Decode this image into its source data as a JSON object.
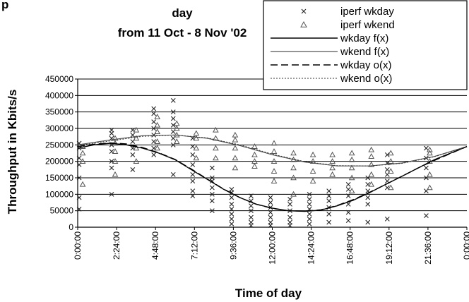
{
  "chart_data": {
    "type": "scatter",
    "title_lines": [
      "p",
      "day",
      "from 11 Oct - 8 Nov '02"
    ],
    "xlabel": "Time of day",
    "ylabel": "Throughput in Kbits/s",
    "xlim": [
      0,
      24
    ],
    "ylim": [
      0,
      450000
    ],
    "y_ticks": [
      0,
      50000,
      100000,
      150000,
      200000,
      250000,
      300000,
      350000,
      400000,
      450000
    ],
    "y_tick_labels": [
      "0",
      "50000",
      "100000",
      "150000",
      "200000",
      "250000",
      "300000",
      "350000",
      "400000",
      "450000"
    ],
    "x_tick_labels": [
      "0:00:00",
      "2:24:00",
      "4:48:00",
      "7:12:00",
      "9:36:00",
      "12:00:00",
      "14:24:00",
      "16:48:00",
      "19:12:00",
      "21:36:00",
      "0:00:00"
    ],
    "grid": "horizontal",
    "legend_position": "top-right",
    "series": [
      {
        "name": "iperf wkday",
        "marker": "x",
        "clusters": [
          {
            "x": 0.2,
            "y": [
              55000,
              90000,
              150000,
              190000,
              210000,
              240000,
              255000
            ]
          },
          {
            "x": 2.2,
            "y": [
              100000,
              180000,
              200000,
              230000,
              250000,
              270000,
              285000,
              295000
            ]
          },
          {
            "x": 3.5,
            "y": [
              175000,
              220000,
              240000,
              260000,
              280000,
              295000
            ]
          },
          {
            "x": 4.8,
            "y": [
              220000,
              240000,
              260000,
              280000,
              300000,
              320000,
              345000,
              360000
            ]
          },
          {
            "x": 6.0,
            "y": [
              160000,
              250000,
              270000,
              290000,
              310000,
              330000,
              350000,
              385000
            ]
          },
          {
            "x": 7.2,
            "y": [
              95000,
              110000,
              140000,
              160000,
              190000,
              220000,
              245000,
              270000
            ]
          },
          {
            "x": 8.4,
            "y": [
              50000,
              80000,
              100000,
              120000,
              140000,
              150000,
              180000
            ]
          },
          {
            "x": 9.6,
            "y": [
              10000,
              25000,
              40000,
              55000,
              70000,
              90000,
              105000,
              115000
            ]
          },
          {
            "x": 10.8,
            "y": [
              5000,
              15000,
              30000,
              50000,
              65000,
              80000,
              95000
            ]
          },
          {
            "x": 12.0,
            "y": [
              5000,
              15000,
              30000,
              45000,
              60000,
              75000,
              90000
            ]
          },
          {
            "x": 13.2,
            "y": [
              5000,
              15000,
              30000,
              50000,
              70000,
              85000
            ]
          },
          {
            "x": 14.4,
            "y": [
              10000,
              25000,
              40000,
              55000,
              70000,
              85000,
              100000
            ]
          },
          {
            "x": 15.6,
            "y": [
              15000,
              40000,
              60000,
              80000,
              95000,
              110000
            ]
          },
          {
            "x": 16.8,
            "y": [
              20000,
              45000,
              70000,
              95000,
              115000,
              130000
            ]
          },
          {
            "x": 18.0,
            "y": [
              15000,
              70000,
              90000,
              110000,
              130000,
              150000
            ]
          },
          {
            "x": 19.2,
            "y": [
              25000,
              120000,
              140000,
              160000,
              175000,
              195000,
              220000
            ]
          },
          {
            "x": 21.6,
            "y": [
              35000,
              110000,
              150000,
              180000,
              210000,
              240000
            ]
          }
        ]
      },
      {
        "name": "iperf wkend",
        "marker": "triangle",
        "clusters": [
          {
            "x": 0.2,
            "y": [
              130000,
              200000,
              225000,
              245000
            ]
          },
          {
            "x": 2.2,
            "y": [
              160000,
              200000,
              230000,
              255000,
              270000
            ]
          },
          {
            "x": 3.5,
            "y": [
              200000,
              240000,
              270000,
              295000
            ]
          },
          {
            "x": 4.8,
            "y": [
              240000,
              260000,
              290000,
              310000,
              335000
            ]
          },
          {
            "x": 6.0,
            "y": [
              260000,
              280000,
              300000,
              315000
            ]
          },
          {
            "x": 7.2,
            "y": [
              210000,
              240000,
              270000,
              285000
            ]
          },
          {
            "x": 8.4,
            "y": [
              210000,
              240000,
              270000,
              295000
            ]
          },
          {
            "x": 9.6,
            "y": [
              180000,
              210000,
              240000,
              265000,
              280000
            ]
          },
          {
            "x": 10.8,
            "y": [
              185000,
              200000,
              220000,
              245000
            ]
          },
          {
            "x": 12.0,
            "y": [
              140000,
              170000,
              200000,
              230000,
              255000
            ]
          },
          {
            "x": 13.2,
            "y": [
              100000,
              150000,
              180000,
              205000,
              225000
            ]
          },
          {
            "x": 14.4,
            "y": [
              140000,
              170000,
              200000,
              220000
            ]
          },
          {
            "x": 15.6,
            "y": [
              160000,
              180000,
              200000,
              220000
            ]
          },
          {
            "x": 16.8,
            "y": [
              110000,
              150000,
              180000,
              205000,
              225000
            ]
          },
          {
            "x": 18.0,
            "y": [
              130000,
              160000,
              190000,
              215000,
              235000
            ]
          },
          {
            "x": 19.2,
            "y": [
              120000,
              170000,
              200000,
              225000
            ]
          },
          {
            "x": 21.6,
            "y": [
              120000,
              160000,
              200000,
              225000,
              235000
            ]
          }
        ]
      },
      {
        "name": "wkday f(x)",
        "line_style": "solid",
        "x": [
          0,
          1,
          2,
          3,
          4,
          5,
          6,
          7,
          8,
          9,
          10,
          11,
          12,
          13,
          14,
          15,
          16,
          17,
          18,
          19,
          20,
          21,
          22,
          23,
          24
        ],
        "y": [
          240000,
          250000,
          255000,
          250000,
          240000,
          225000,
          205000,
          175000,
          145000,
          115000,
          90000,
          70000,
          58000,
          50000,
          48000,
          52000,
          65000,
          82000,
          105000,
          130000,
          155000,
          180000,
          205000,
          225000,
          245000
        ]
      },
      {
        "name": "wkend f(x)",
        "line_style": "solid-light",
        "x": [
          0,
          2,
          4,
          6,
          8,
          10,
          12,
          14,
          16,
          18,
          20,
          22,
          24
        ],
        "y": [
          250000,
          265000,
          278000,
          280000,
          270000,
          248000,
          220000,
          198000,
          186000,
          186000,
          195000,
          215000,
          245000
        ]
      },
      {
        "name": "wkday o(x)",
        "line_style": "dashed",
        "x": [
          0,
          1,
          2,
          3,
          4,
          5,
          6,
          7,
          8,
          9,
          10,
          11,
          12,
          13,
          14,
          15,
          16,
          17,
          18,
          19,
          20,
          21,
          22,
          23,
          24
        ],
        "y": [
          245000,
          252000,
          256000,
          253000,
          242000,
          226000,
          206000,
          177000,
          146000,
          116000,
          90000,
          70000,
          57000,
          50000,
          49000,
          53000,
          66000,
          84000,
          106000,
          130000,
          155000,
          180000,
          203000,
          224000,
          245000
        ]
      },
      {
        "name": "wkend o(x)",
        "line_style": "dotted",
        "x": [
          0,
          2,
          4,
          6,
          8,
          10,
          12,
          14,
          16,
          18,
          20,
          22,
          24
        ],
        "y": [
          248000,
          262000,
          276000,
          280000,
          271000,
          250000,
          222000,
          199000,
          187000,
          186000,
          194000,
          214000,
          245000
        ]
      }
    ]
  }
}
